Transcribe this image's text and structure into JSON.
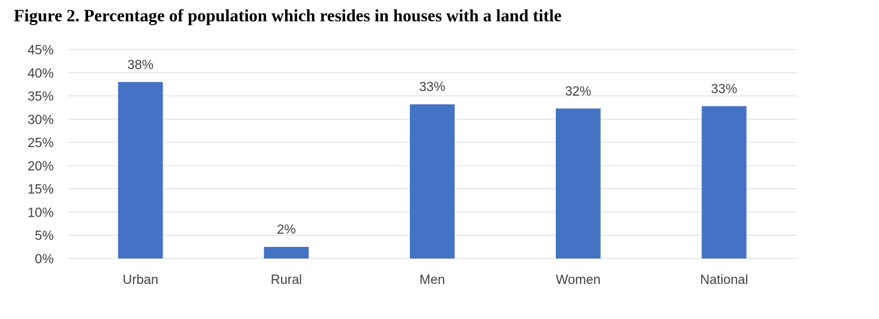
{
  "title": "Figure 2. Percentage of population which resides in houses with a land title",
  "chart_data": {
    "type": "bar",
    "title": "Figure 2. Percentage of population which resides in houses with a land title",
    "categories": [
      "Urban",
      "Rural",
      "Men",
      "Women",
      "National"
    ],
    "values": [
      38,
      2.5,
      33.2,
      32.3,
      32.8
    ],
    "data_labels": [
      "38%",
      "2%",
      "33%",
      "32%",
      "33%"
    ],
    "ylim": [
      0,
      45
    ],
    "ytick_step": 5,
    "ytick_labels": [
      "0%",
      "5%",
      "10%",
      "15%",
      "20%",
      "25%",
      "30%",
      "35%",
      "40%",
      "45%"
    ],
    "xlabel": "",
    "ylabel": "",
    "grid": true,
    "legend": "none",
    "bar_color": "#4472C4",
    "grid_color": "#d9d9d9"
  }
}
